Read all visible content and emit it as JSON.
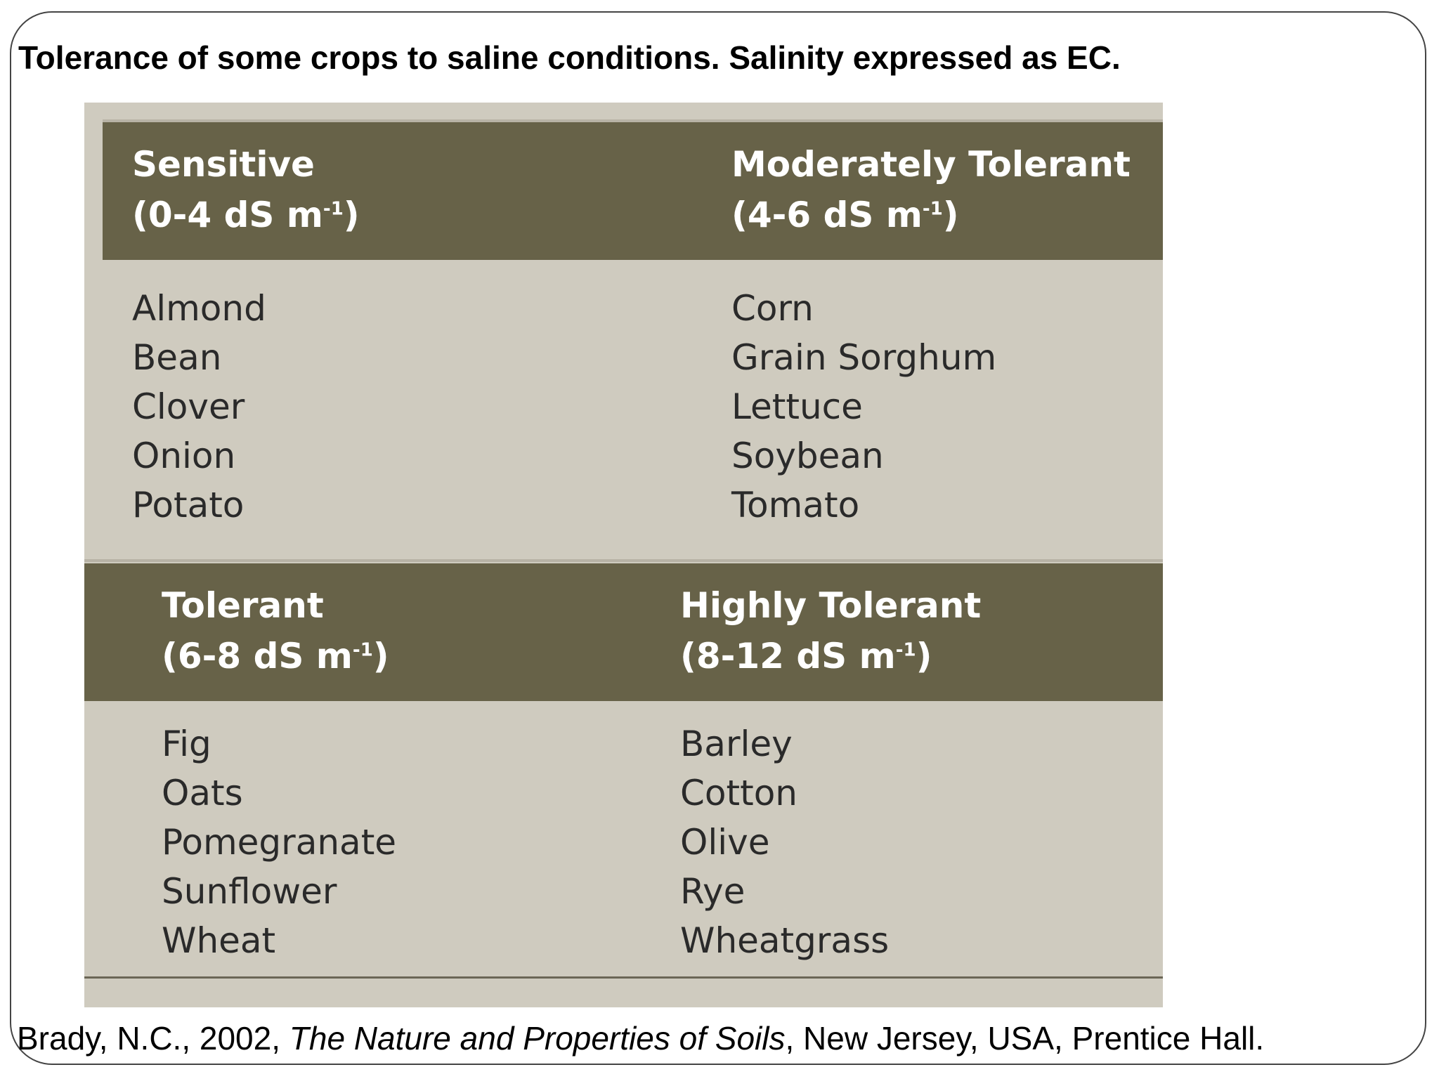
{
  "title": "Tolerance of some crops to saline conditions. Salinity expressed as EC.",
  "table": {
    "groups": [
      {
        "name": "Sensitive",
        "range": "(0-4 dS m",
        "exponent": "-1",
        "close": ")",
        "crops": [
          "Almond",
          "Bean",
          "Clover",
          "Onion",
          "Potato"
        ]
      },
      {
        "name": "Moderately Tolerant",
        "range": "(4-6 dS m",
        "exponent": "-1",
        "close": ")",
        "crops": [
          "Corn",
          "Grain Sorghum",
          "Lettuce",
          "Soybean",
          "Tomato"
        ]
      },
      {
        "name": "Tolerant",
        "range": "(6-8 dS m",
        "exponent": "-1",
        "close": ")",
        "crops": [
          "Fig",
          "Oats",
          "Pomegranate",
          "Sunflower",
          "Wheat"
        ]
      },
      {
        "name": "Highly Tolerant",
        "range": "(8-12 dS m",
        "exponent": "-1",
        "close": ")",
        "crops": [
          "Barley",
          "Cotton",
          "Olive",
          "Rye",
          "Wheatgrass"
        ]
      }
    ]
  },
  "citation": {
    "before": "Brady, N.C., 2002, ",
    "book": "The Nature and Properties of Soils",
    "after": ", New Jersey, USA, Prentice Hall."
  },
  "colors": {
    "header_band": "#676248",
    "table_background": "#cfcbbf",
    "header_text": "#ffffff",
    "body_text": "#2a2a2a"
  }
}
